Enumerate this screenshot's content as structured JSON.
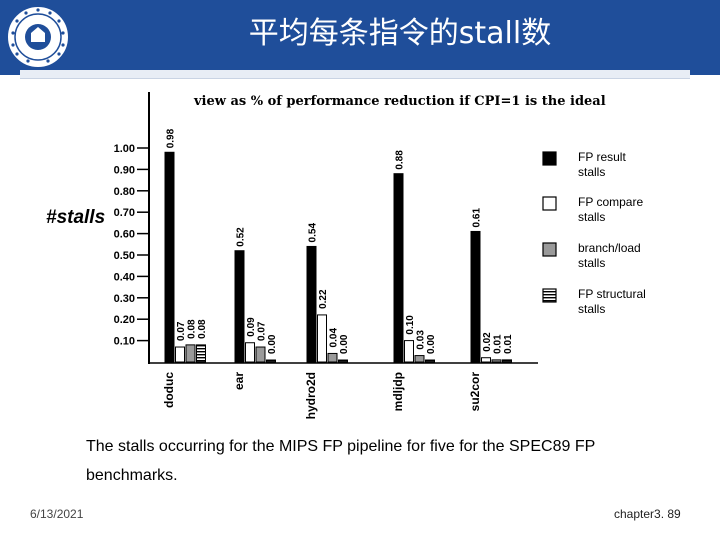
{
  "slide": {
    "title": "平均每条指令的stall数",
    "caption": "The stalls occurring for the MIPS FP pipeline for five for the SPEC89 FP benchmarks.",
    "date": "6/13/2021",
    "page": "chapter3. 89"
  },
  "chart_data": {
    "type": "bar",
    "title": "view as % of performance reduction if CPI=1 is the ideal",
    "ylabel": "#stalls",
    "ylim": [
      0,
      1.1
    ],
    "yticks": [
      "0.10",
      "0.20",
      "0.30",
      "0.40",
      "0.50",
      "0.60",
      "0.70",
      "0.80",
      "0.90",
      "1.00"
    ],
    "categories": [
      "doduc",
      "ear",
      "hydro2d",
      "mdljdp",
      "su2cor"
    ],
    "legend_position": "right",
    "series": [
      {
        "name": "FP result stalls",
        "pattern": "solid",
        "color": "#000000",
        "values": [
          0.98,
          0.52,
          0.54,
          0.88,
          0.61
        ],
        "labels": [
          "0.98",
          "0.52",
          "0.54",
          "0.88",
          "0.61"
        ]
      },
      {
        "name": "FP compare stalls",
        "pattern": "white",
        "color": "#ffffff",
        "values": [
          0.07,
          0.09,
          0.22,
          0.1,
          0.02
        ],
        "labels": [
          "0.07",
          "0.09",
          "0.22",
          "0.10",
          "0.02"
        ]
      },
      {
        "name": "branch/load stalls",
        "pattern": "gray",
        "color": "#9a9a9a",
        "values": [
          0.08,
          0.07,
          0.04,
          0.03,
          0.01
        ],
        "labels": [
          "0.08",
          "0.07",
          "0.04",
          "0.03",
          "0.01"
        ]
      },
      {
        "name": "FP structural stalls",
        "pattern": "hatch",
        "color": "#000000",
        "values": [
          0.08,
          0.0,
          0.0,
          0.0,
          0.01
        ],
        "labels": [
          "0.08",
          "0.00",
          "0.00",
          "0.00",
          "0.01"
        ]
      }
    ]
  }
}
